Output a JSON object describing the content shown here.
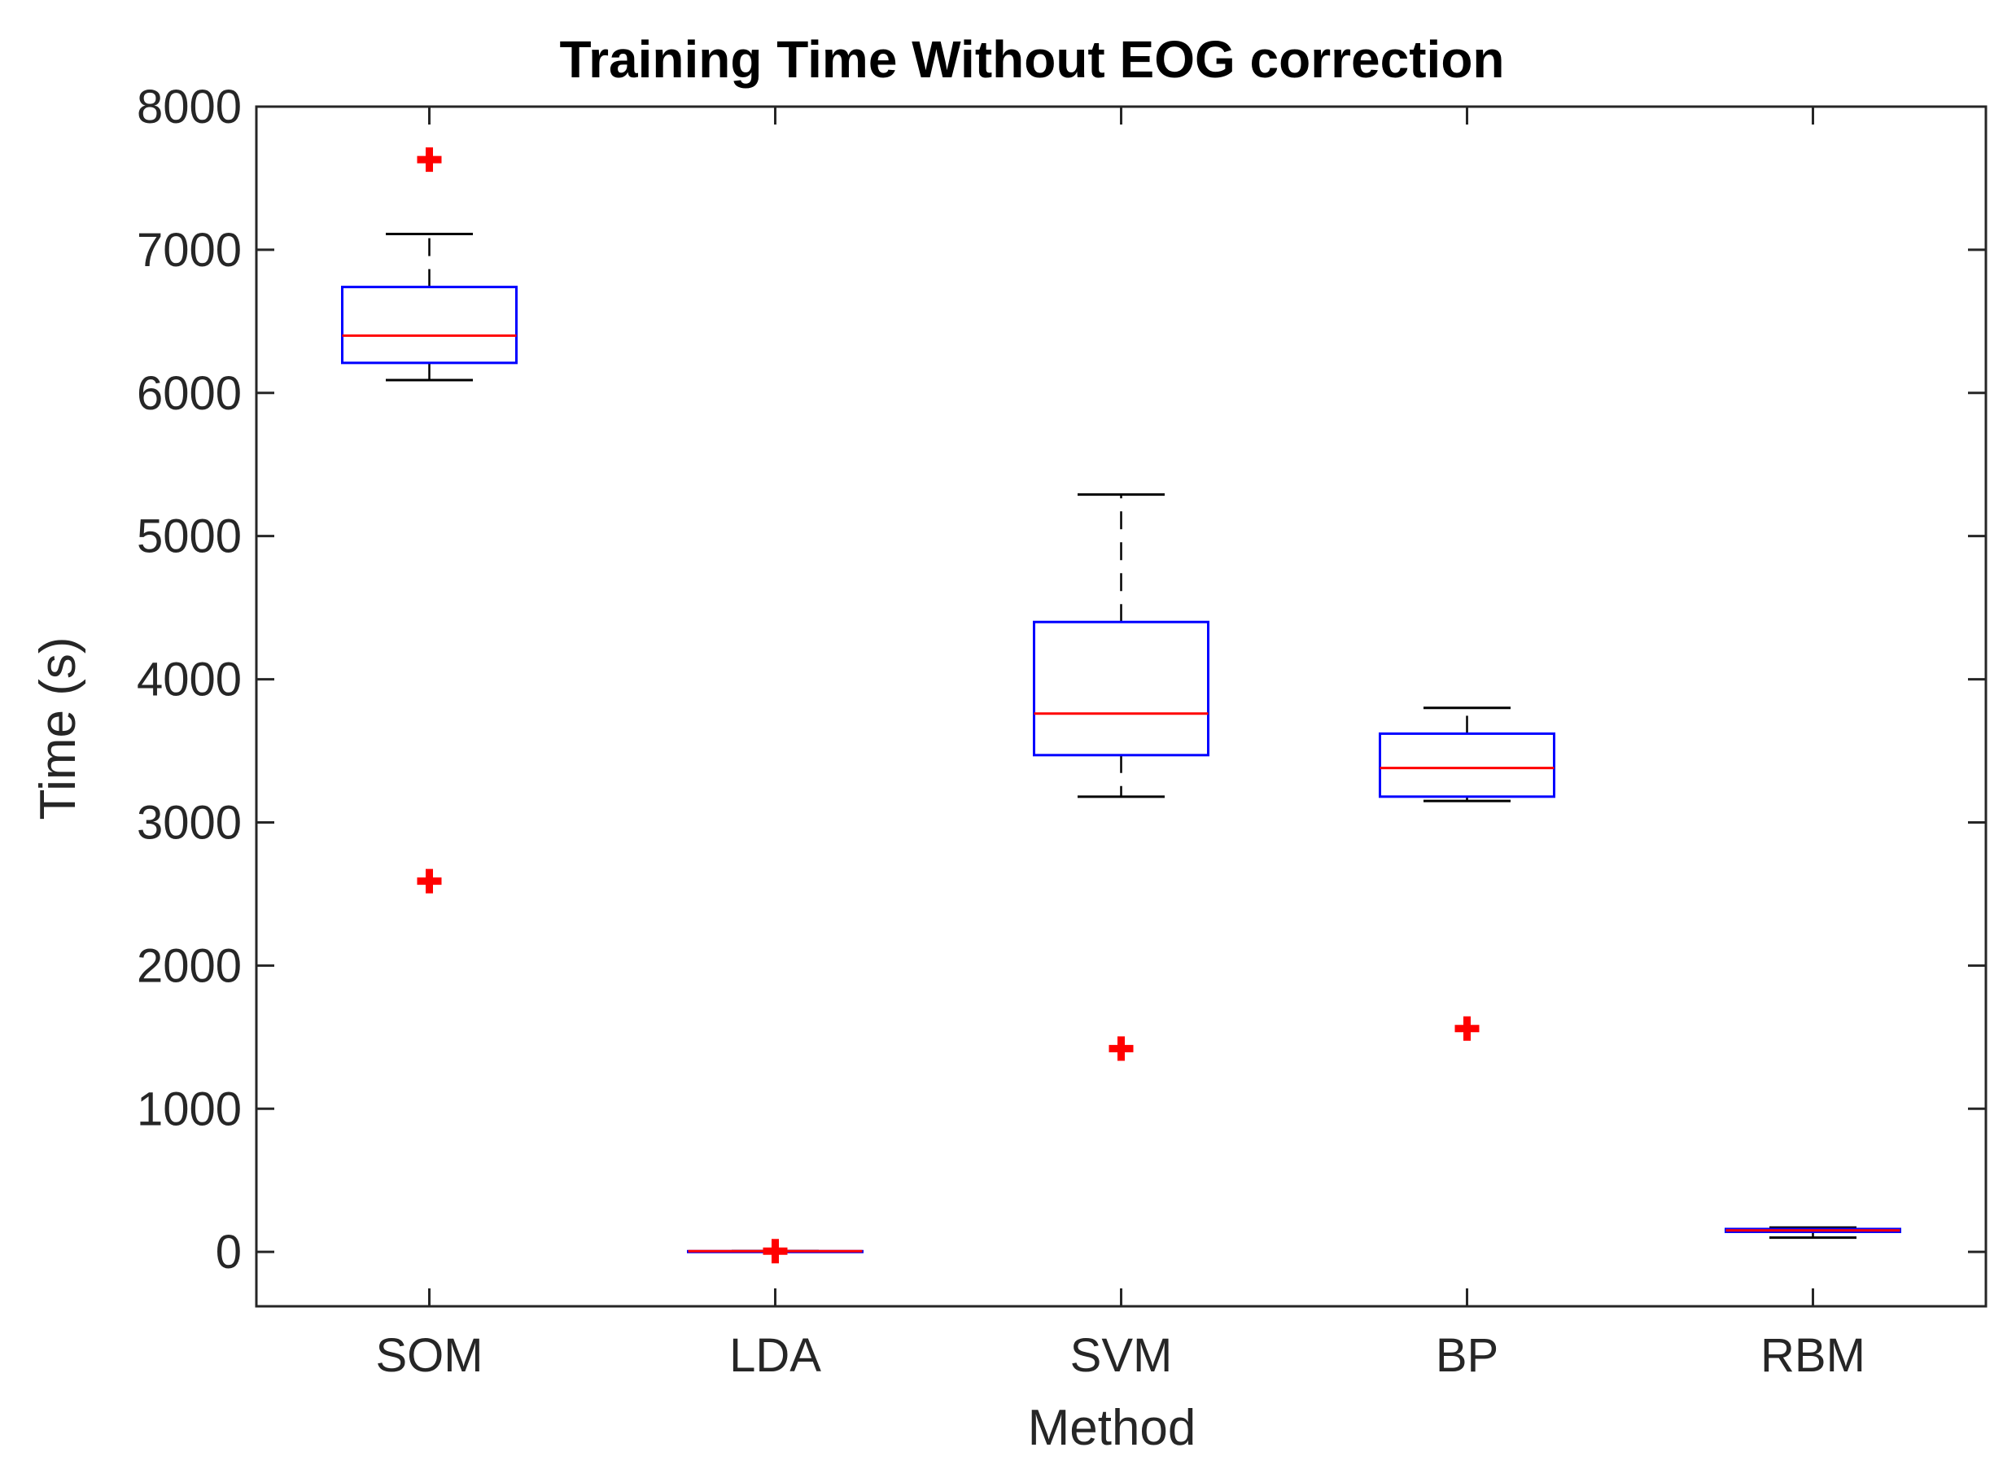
{
  "chart_data": {
    "type": "boxplot",
    "title": "Training Time Without EOG correction",
    "xlabel": "Method",
    "ylabel": "Time (s)",
    "ylim": [
      -380,
      8000
    ],
    "yticks": [
      0,
      1000,
      2000,
      3000,
      4000,
      5000,
      6000,
      7000,
      8000
    ],
    "grid": false,
    "categories": [
      "SOM",
      "LDA",
      "SVM",
      "BP",
      "RBM"
    ],
    "boxes": [
      {
        "name": "SOM",
        "whisker_low": 6090,
        "q1": 6210,
        "median": 6400,
        "q3": 6740,
        "whisker_high": 7110,
        "outliers": [
          7630,
          2590
        ]
      },
      {
        "name": "LDA",
        "whisker_low": 5,
        "q1": 5,
        "median": 5,
        "q3": 5,
        "whisker_high": 5,
        "outliers": [
          5
        ]
      },
      {
        "name": "SVM",
        "whisker_low": 3180,
        "q1": 3470,
        "median": 3760,
        "q3": 4400,
        "whisker_high": 5290,
        "outliers": [
          1420
        ]
      },
      {
        "name": "BP",
        "whisker_low": 3150,
        "q1": 3180,
        "median": 3380,
        "q3": 3620,
        "whisker_high": 3800,
        "outliers": [
          1560
        ]
      },
      {
        "name": "RBM",
        "whisker_low": 100,
        "q1": 140,
        "median": 150,
        "q3": 160,
        "whisker_high": 170,
        "outliers": []
      }
    ],
    "colors": {
      "box": "#0000ff",
      "median": "#ff0000",
      "whisker": "#000000",
      "outlier": "#ff0000",
      "axis": "#262626"
    }
  }
}
